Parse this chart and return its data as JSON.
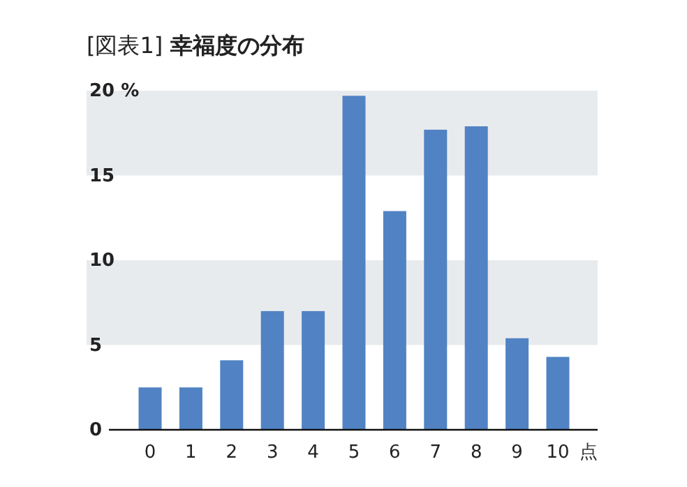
{
  "chart_data": {
    "type": "bar",
    "title": "[図表1] **幸福度の分布**",
    "xlabel": "点",
    "categories": [
      "0",
      "1",
      "2",
      "3",
      "4",
      "5",
      "6",
      "7",
      "8",
      "9",
      "10"
    ],
    "values": [
      2.5,
      2.5,
      4.1,
      7.0,
      7.0,
      19.7,
      12.9,
      17.7,
      17.9,
      5.4,
      4.3
    ],
    "color": "#5183c4",
    "ylim": [
      0,
      20
    ],
    "yticks": [
      0,
      5,
      10,
      15,
      {
        "value": 20,
        "label": "20 %"
      }
    ],
    "bands": [
      {
        "axis": "y",
        "from": 5,
        "to": 10,
        "color": "#e8ebee"
      },
      {
        "axis": "y",
        "from": 15,
        "to": 20,
        "color": "#e8ebee"
      }
    ]
  }
}
